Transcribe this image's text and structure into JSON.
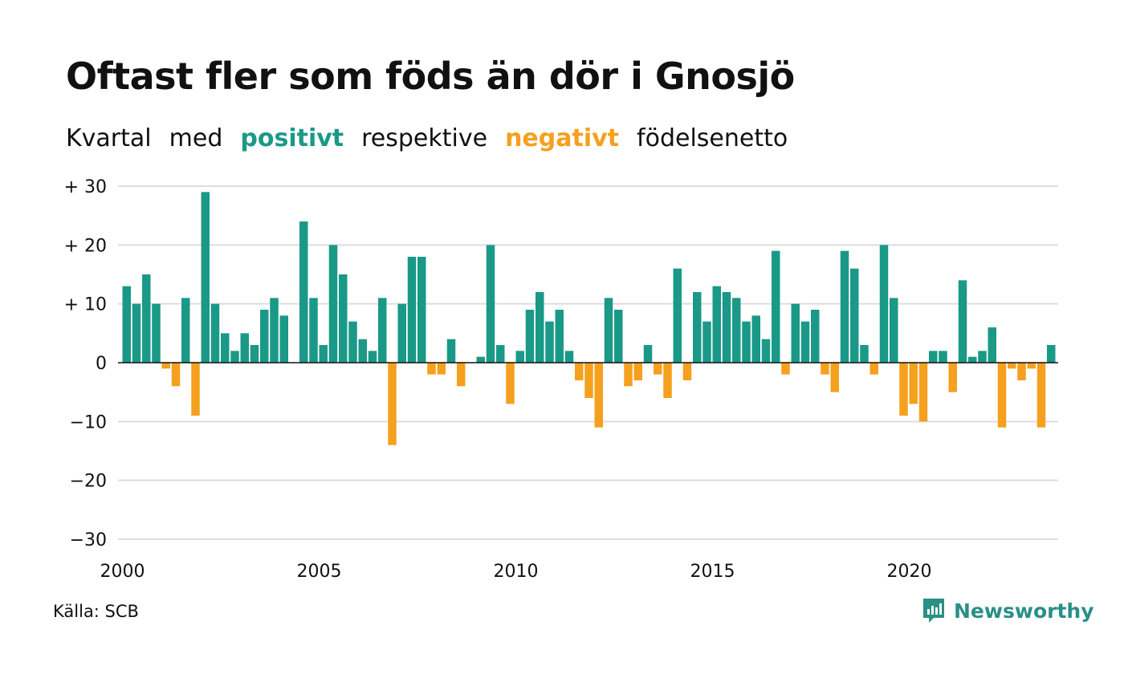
{
  "title": "Oftast fler som föds än dör i Gnosjö",
  "subtitle": {
    "part1": "Kvartal",
    "part2": "med",
    "positive": "positivt",
    "part3": "respektive",
    "negative": "negativt",
    "part4": "födelsenetto"
  },
  "source": "Källa: SCB",
  "brand": "Newsworthy",
  "colors": {
    "positive": "#1a9988",
    "negative": "#f5a01e",
    "grid": "#dddddd",
    "zero": "#111111",
    "brand": "#2a8f86"
  },
  "chart_data": {
    "type": "bar",
    "start_year": 2000,
    "periodicity": "quarterly",
    "ylim": [
      -30,
      30
    ],
    "y_ticks": [
      {
        "value": 30,
        "label": "+ 30"
      },
      {
        "value": 20,
        "label": "+ 20"
      },
      {
        "value": 10,
        "label": "+ 10"
      },
      {
        "value": 0,
        "label": "0"
      },
      {
        "value": -10,
        "label": "−10"
      },
      {
        "value": -20,
        "label": "−20"
      },
      {
        "value": -30,
        "label": "−30"
      }
    ],
    "x_ticks": [
      "2000",
      "2005",
      "2010",
      "2015",
      "2020"
    ],
    "grid": true,
    "values": [
      13,
      10,
      15,
      10,
      -1,
      -4,
      11,
      -9,
      29,
      10,
      5,
      2,
      5,
      3,
      9,
      11,
      8,
      0,
      24,
      11,
      3,
      20,
      15,
      7,
      4,
      2,
      11,
      -14,
      10,
      18,
      18,
      -2,
      -2,
      4,
      -4,
      0,
      1,
      20,
      3,
      -7,
      2,
      9,
      12,
      7,
      9,
      2,
      -3,
      -6,
      -11,
      11,
      9,
      -4,
      -3,
      3,
      -2,
      -6,
      16,
      -3,
      12,
      7,
      13,
      12,
      11,
      7,
      8,
      4,
      19,
      -2,
      10,
      7,
      9,
      -2,
      -5,
      19,
      16,
      3,
      -2,
      20,
      11,
      -9,
      -7,
      -10,
      2,
      2,
      -5,
      14,
      1,
      2,
      6,
      -11,
      -1,
      -3,
      -1,
      -11,
      3
    ]
  }
}
